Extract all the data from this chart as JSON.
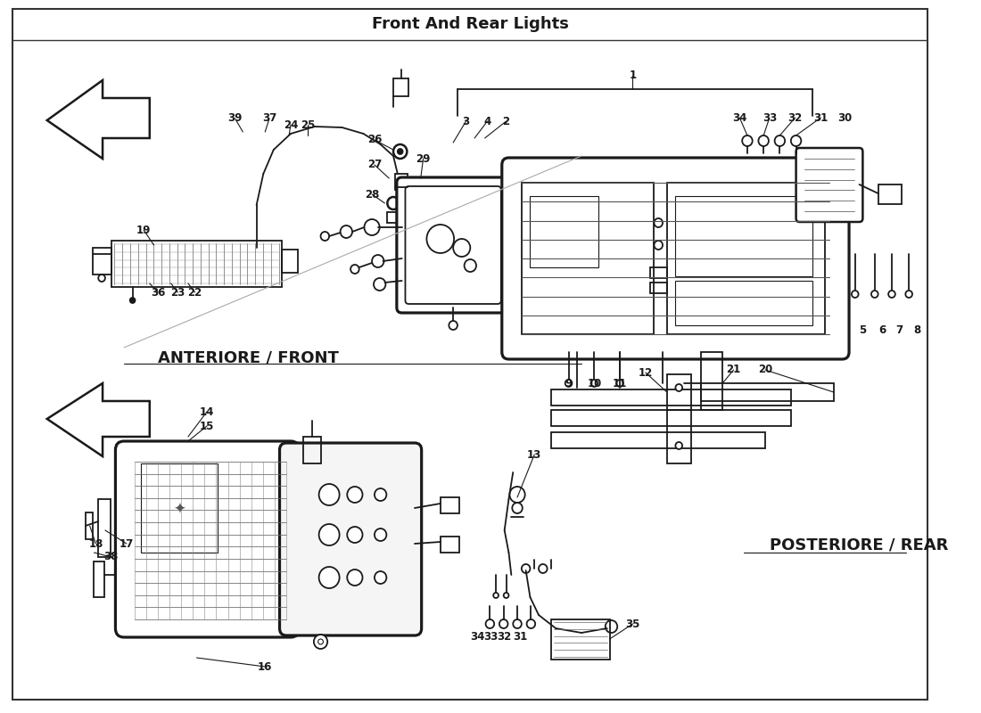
{
  "bg_color": "#ffffff",
  "line_color": "#1a1a1a",
  "text_color": "#1a1a1a",
  "front_label": "ANTERIORE / FRONT",
  "rear_label": "POSTERIORE / REAR",
  "figsize": [
    11.0,
    8.0
  ],
  "dpi": 100,
  "border_color": "#333333"
}
